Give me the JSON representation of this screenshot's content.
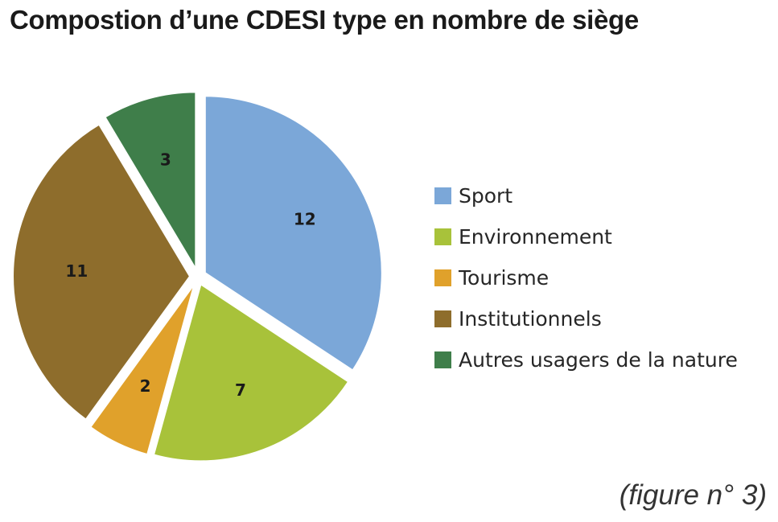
{
  "title": "Compostion d’une CDESI type en nombre de siège",
  "caption": "(figure n° 3)",
  "chart_data": {
    "type": "pie",
    "title": "Compostion d’une CDESI type en nombre de siège",
    "categories": [
      "Sport",
      "Environnement",
      "Tourisme",
      "Institutionnels",
      "Autres usagers de la nature"
    ],
    "values": [
      12,
      7,
      2,
      11,
      3
    ],
    "colors": [
      "#7ba7d8",
      "#a8c23a",
      "#e0a12b",
      "#8e6d2c",
      "#3f7e4a"
    ],
    "data_labels": [
      "12",
      "7",
      "2",
      "11",
      "3"
    ],
    "exploded": true,
    "legend_position": "right"
  }
}
